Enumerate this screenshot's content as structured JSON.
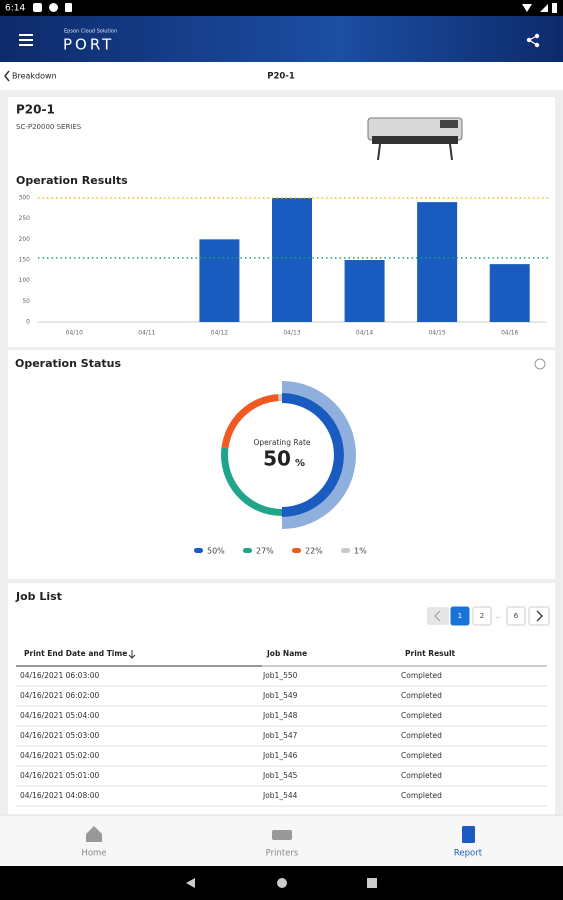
{
  "status_bar": {
    "time": "6:14"
  },
  "app_bar": {
    "brand_small": "Epson Cloud Solution",
    "brand": "PORT"
  },
  "nav": {
    "back": "Breakdown",
    "title": "P20-1"
  },
  "printer": {
    "name": "P20-1",
    "model": "SC-P20000 SERIES"
  },
  "chart_data": [
    {
      "type": "bar",
      "title": "Operation Results",
      "categories": [
        "04/10",
        "04/11",
        "04/12",
        "04/13",
        "04/14",
        "04/15",
        "04/16"
      ],
      "values": [
        0,
        0,
        200,
        300,
        150,
        290,
        140
      ],
      "color": "#1a5bbf",
      "ylim": [
        0,
        300
      ],
      "yticks": [
        0,
        50,
        100,
        150,
        200,
        250,
        300
      ],
      "grid": false,
      "reference_lines": [
        {
          "value": 300,
          "color": "#f2b705"
        },
        {
          "value": 155,
          "color": "#1aa37a"
        }
      ]
    },
    {
      "type": "donut",
      "title": "Operation Status",
      "center_label": "Operating Rate",
      "center_value": "50",
      "center_unit": "%",
      "values": [
        50,
        27,
        22,
        1
      ],
      "value_labels": [
        "50%",
        "27%",
        "22%",
        "1%"
      ],
      "colors": [
        "#1a5bbf",
        "#1fa58a",
        "#f05a22",
        "#c8c8c8"
      ]
    }
  ],
  "job_list": {
    "title": "Job List",
    "pages": [
      "1",
      "2",
      "...",
      "6"
    ],
    "headers": [
      "Print End Date and Time",
      "Job Name",
      "Print Result"
    ],
    "rows": [
      [
        "04/16/2021 06:03:00",
        "Job1_550",
        "Completed"
      ],
      [
        "04/16/2021 06:02:00",
        "Job1_549",
        "Completed"
      ],
      [
        "04/16/2021 05:04:00",
        "Job1_548",
        "Completed"
      ],
      [
        "04/16/2021 05:03:00",
        "Job1_547",
        "Completed"
      ],
      [
        "04/16/2021 05:02:00",
        "Job1_546",
        "Completed"
      ],
      [
        "04/16/2021 05:01:00",
        "Job1_545",
        "Completed"
      ],
      [
        "04/16/2021 04:08:00",
        "Job1_544",
        "Completed"
      ]
    ]
  },
  "bottom_nav": {
    "home": "Home",
    "printers": "Printers",
    "report": "Report"
  }
}
